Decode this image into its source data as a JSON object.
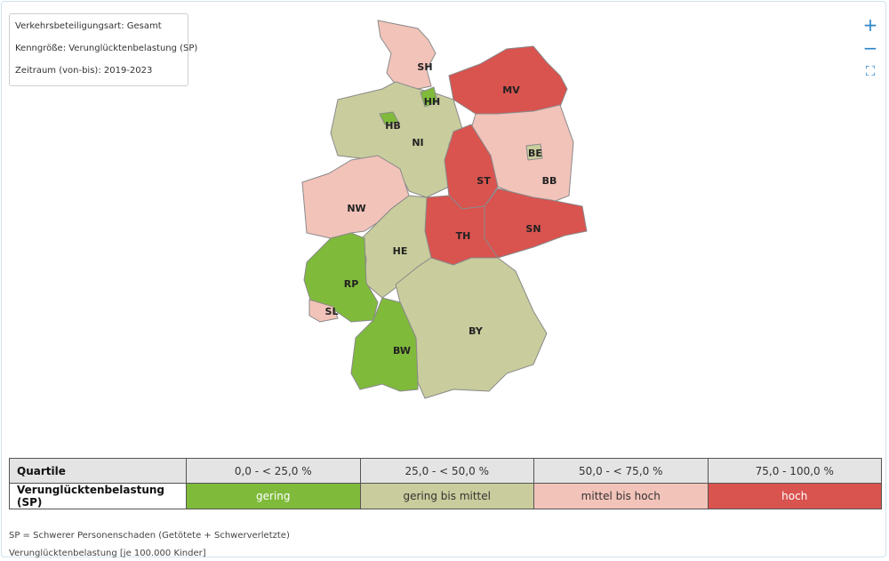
{
  "info": {
    "line1": "Verkehrsbeteiligungsart: Gesamt",
    "line2": "Kenngröße: Verunglücktenbelastung (SP)",
    "line3": "Zeitraum (von-bis): 2019-2023"
  },
  "controls": {
    "zoom_in": "+",
    "zoom_out": "−",
    "fullscreen": "⛶"
  },
  "map": {
    "states": [
      {
        "code": "SH",
        "category": "mittel bis hoch"
      },
      {
        "code": "HH",
        "category": "gering"
      },
      {
        "code": "MV",
        "category": "hoch"
      },
      {
        "code": "HB",
        "category": "gering"
      },
      {
        "code": "NI",
        "category": "gering bis mittel"
      },
      {
        "code": "BE",
        "category": "gering bis mittel"
      },
      {
        "code": "BB",
        "category": "mittel bis hoch"
      },
      {
        "code": "ST",
        "category": "hoch"
      },
      {
        "code": "NW",
        "category": "mittel bis hoch"
      },
      {
        "code": "SN",
        "category": "hoch"
      },
      {
        "code": "TH",
        "category": "hoch"
      },
      {
        "code": "HE",
        "category": "gering bis mittel"
      },
      {
        "code": "RP",
        "category": "gering"
      },
      {
        "code": "SL",
        "category": "mittel bis hoch"
      },
      {
        "code": "BY",
        "category": "gering bis mittel"
      },
      {
        "code": "BW",
        "category": "gering"
      }
    ]
  },
  "colors": {
    "gering": "#7fba3b",
    "gering bis mittel": "#c9cc9c",
    "mittel bis hoch": "#f2c3b9",
    "hoch": "#d9534f"
  },
  "legend": {
    "header_quartile": "Quartile",
    "header_metric": "Verunglücktenbelastung (SP)",
    "quartiles": [
      "0,0 - < 25,0 %",
      "25,0 - < 50,0 %",
      "50,0 - < 75,0 %",
      "75,0 - 100,0 %"
    ],
    "categories": [
      "gering",
      "gering bis mittel",
      "mittel bis hoch",
      "hoch"
    ]
  },
  "notes": {
    "sp": "SP = Schwerer Personenschaden (Getötete + Schwerverletzte)",
    "unit": "Verunglücktenbelastung [je 100.000 Kinder]"
  }
}
